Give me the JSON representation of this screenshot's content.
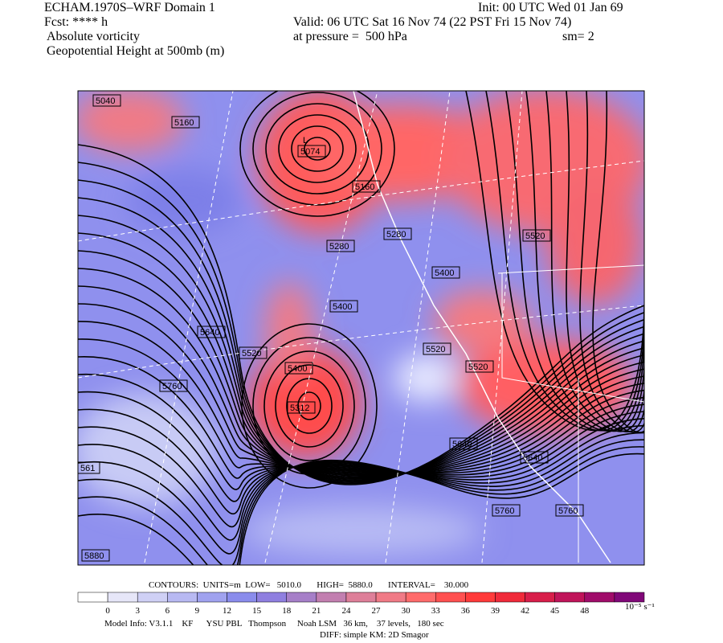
{
  "header": {
    "left": [
      "ECHAM.1970S–WRF Domain 1",
      "Fcst: **** h",
      "Absolute vorticity",
      "Geopotential Height at 500mb (m)"
    ],
    "right": [
      "Init: 00 UTC Wed 01 Jan 69",
      "Valid: 06 UTC Sat 16 Nov 74 (22 PST Fri 15 Nov 74)",
      "at pressure =  500 hPa",
      "sm= 2"
    ]
  },
  "map": {
    "contour_labels": [
      "5040",
      "5160",
      "L",
      "5074",
      "5160",
      "5280",
      "5280",
      "5400",
      "5520",
      "5400",
      "5640",
      "5520",
      "5520",
      "5520",
      "5400",
      "5312",
      "5760",
      "561",
      "5640",
      "5640",
      "5760",
      "5760",
      "5880"
    ]
  },
  "contours_line": "CONTOURS:  UNITS=m  LOW=   5010.0       HIGH=  5880.0       INTERVAL=    30.000",
  "colorbar": {
    "ticks": [
      0,
      3,
      6,
      9,
      12,
      15,
      18,
      21,
      24,
      27,
      30,
      33,
      36,
      39,
      42,
      45,
      48
    ],
    "units": "10⁻⁵ s⁻¹"
  },
  "footer": [
    "Model Info: V3.1.1    KF      YSU PBL   Thompson     Noah LSM   36 km,    37 levels,   180 sec",
    "DIFF: simple KM: 2D Smagor"
  ]
}
